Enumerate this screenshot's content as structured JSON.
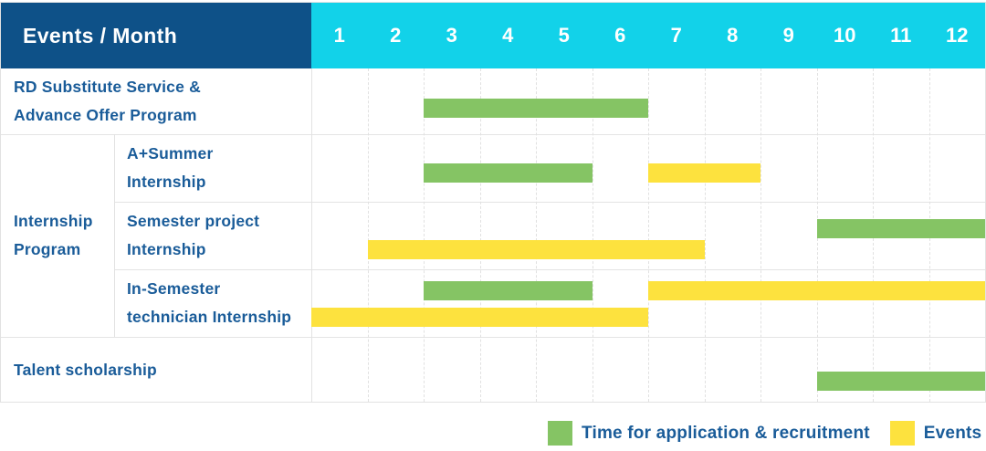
{
  "header": {
    "title": "Events / Month",
    "months": [
      "1",
      "2",
      "3",
      "4",
      "5",
      "6",
      "7",
      "8",
      "9",
      "10",
      "11",
      "12"
    ]
  },
  "colors": {
    "header_bg": "#0E5188",
    "months_bg": "#12D2E9",
    "recruitment": "#85C464",
    "event": "#FDE23E",
    "label_text": "#1A5C99",
    "grid": "#E2E2E2"
  },
  "group_cell": {
    "label": "Internship Program",
    "label_display": "Internship\nProgram"
  },
  "chart_data": {
    "type": "gantt",
    "title": "Events / Month",
    "x_unit": "month",
    "x_range": [
      1,
      12
    ],
    "rows": [
      {
        "group": null,
        "label": "RD Substitute Service & Advance Offer Program",
        "label_display": "RD Substitute Service &\nAdvance Offer Program",
        "bars": [
          {
            "kind": "recruitment",
            "start_month": 3,
            "end_month": 6,
            "lane": 0
          }
        ]
      },
      {
        "group": "Internship Program",
        "label": "A+Summer Internship",
        "label_display": "A+Summer\nInternship",
        "bars": [
          {
            "kind": "recruitment",
            "start_month": 3,
            "end_month": 5,
            "lane": 0
          },
          {
            "kind": "event",
            "start_month": 7,
            "end_month": 8,
            "lane": 0
          }
        ]
      },
      {
        "group": "Internship Program",
        "label": "Semester project Internship",
        "label_display": "Semester project\nInternship",
        "bars": [
          {
            "kind": "recruitment",
            "start_month": 10,
            "end_month": 12,
            "lane": 0
          },
          {
            "kind": "event",
            "start_month": 2,
            "end_month": 7,
            "lane": 1
          }
        ]
      },
      {
        "group": "Internship Program",
        "label": "In-Semester technician Internship",
        "label_display": "In-Semester\ntechnician Internship",
        "bars": [
          {
            "kind": "recruitment",
            "start_month": 3,
            "end_month": 5,
            "lane": 0
          },
          {
            "kind": "event",
            "start_month": 7,
            "end_month": 12,
            "lane": 0
          },
          {
            "kind": "event",
            "start_month": 1,
            "end_month": 6,
            "lane": 1
          }
        ]
      },
      {
        "group": null,
        "label": "Talent scholarship",
        "label_display": "Talent scholarship",
        "bars": [
          {
            "kind": "recruitment",
            "start_month": 10,
            "end_month": 12,
            "lane": 0
          }
        ]
      }
    ],
    "legend": [
      {
        "kind": "recruitment",
        "label": "Time for application & recruitment",
        "color": "#85C464"
      },
      {
        "kind": "event",
        "label": "Events",
        "color": "#FDE23E"
      }
    ],
    "legend_position": "bottom-right",
    "grid": true
  }
}
